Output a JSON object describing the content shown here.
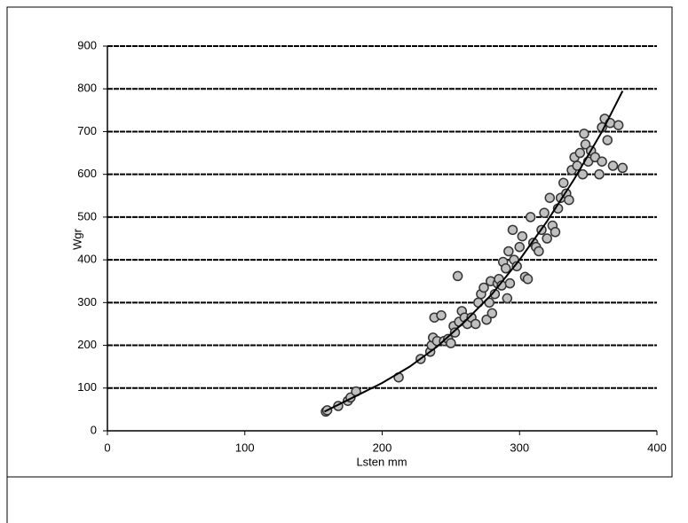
{
  "chart_data": {
    "type": "scatter",
    "x_label": "Lsten mm",
    "y_label": "Wgr",
    "x": [
      159,
      160,
      168,
      175,
      177,
      181,
      212,
      228,
      235,
      236,
      237,
      238,
      240,
      243,
      245,
      248,
      250,
      252,
      253,
      255,
      256,
      258,
      260,
      262,
      265,
      268,
      270,
      272,
      274,
      276,
      278,
      279,
      280,
      282,
      284,
      285,
      287,
      288,
      290,
      291,
      292,
      293,
      295,
      296,
      298,
      300,
      302,
      304,
      306,
      308,
      310,
      312,
      314,
      316,
      318,
      320,
      322,
      324,
      326,
      328,
      330,
      332,
      334,
      336,
      338,
      340,
      342,
      344,
      346,
      347,
      348,
      350,
      352,
      355,
      358,
      360,
      362,
      364,
      366,
      368,
      372,
      375,
      360
    ],
    "values": [
      45,
      48,
      58,
      70,
      78,
      92,
      125,
      168,
      185,
      200,
      218,
      265,
      210,
      270,
      210,
      215,
      205,
      245,
      230,
      362,
      255,
      280,
      265,
      250,
      265,
      250,
      300,
      320,
      335,
      260,
      300,
      350,
      275,
      320,
      345,
      355,
      340,
      395,
      380,
      310,
      420,
      345,
      470,
      400,
      385,
      430,
      455,
      360,
      355,
      500,
      440,
      430,
      420,
      470,
      510,
      450,
      545,
      480,
      465,
      520,
      545,
      580,
      555,
      540,
      610,
      640,
      620,
      650,
      600,
      695,
      670,
      630,
      655,
      640,
      600,
      630,
      730,
      680,
      720,
      620,
      715,
      615,
      710
    ],
    "marker_color": "#c0c0c0",
    "trendline": {
      "color": "#000000",
      "x": [
        158,
        180,
        200,
        220,
        240,
        260,
        280,
        300,
        320,
        340,
        360,
        375
      ],
      "values": [
        45,
        80,
        112,
        150,
        197,
        255,
        320,
        400,
        490,
        590,
        700,
        795
      ]
    },
    "xlim": [
      0,
      400
    ],
    "xticks": [
      0,
      100,
      200,
      300,
      400
    ],
    "ylim": [
      0,
      900
    ],
    "yticks": [
      0,
      100,
      200,
      300,
      400,
      500,
      600,
      700,
      800,
      900
    ],
    "grid": true
  }
}
